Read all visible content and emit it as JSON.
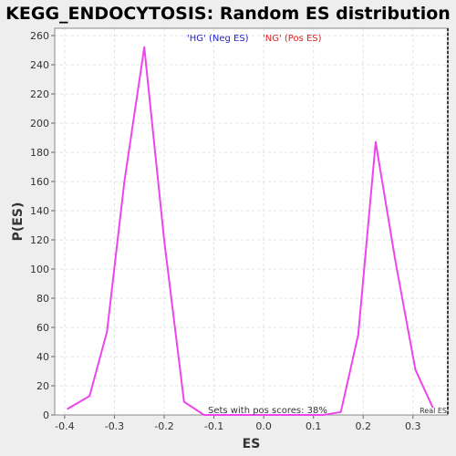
{
  "chart_data": {
    "type": "line",
    "title": "KEGG_ENDOCYTOSIS: Random ES distribution",
    "xlabel": "ES",
    "ylabel": "P(ES)",
    "xlim": [
      -0.42,
      0.37
    ],
    "ylim": [
      0,
      265
    ],
    "x_ticks": [
      -0.4,
      -0.3,
      -0.2,
      -0.1,
      0.0,
      0.1,
      0.2,
      0.3
    ],
    "x_tick_labels": [
      "-0.4",
      "-0.3",
      "-0.2",
      "-0.1",
      "0.0",
      "0.1",
      "0.2",
      "0.3"
    ],
    "y_ticks": [
      0,
      20,
      40,
      60,
      80,
      100,
      120,
      140,
      160,
      180,
      200,
      220,
      240,
      260
    ],
    "grid": true,
    "line_color": "#ee44ee",
    "series": [
      {
        "x": [
          -0.395,
          -0.35,
          -0.315,
          -0.28,
          -0.24,
          -0.2,
          -0.16,
          -0.12,
          -0.085,
          -0.045,
          0.0,
          0.045,
          0.085,
          0.12,
          0.155,
          0.19,
          0.225,
          0.265,
          0.305,
          0.34
        ],
        "y": [
          4,
          13,
          57,
          160,
          252,
          120,
          9,
          0,
          0,
          0,
          0,
          0,
          0,
          0,
          2,
          55,
          187,
          105,
          31,
          5
        ]
      }
    ],
    "legend": [
      {
        "label": "'HG' (Neg ES)",
        "color": "#2222cc"
      },
      {
        "label": "'NG' (Pos ES)",
        "color": "#dd2222"
      }
    ],
    "legend_position": "top-center",
    "annotations": {
      "pos_scores": "Sets with pos scores: 38%",
      "real_es": "Real ES"
    },
    "real_es_x": 0.37
  }
}
